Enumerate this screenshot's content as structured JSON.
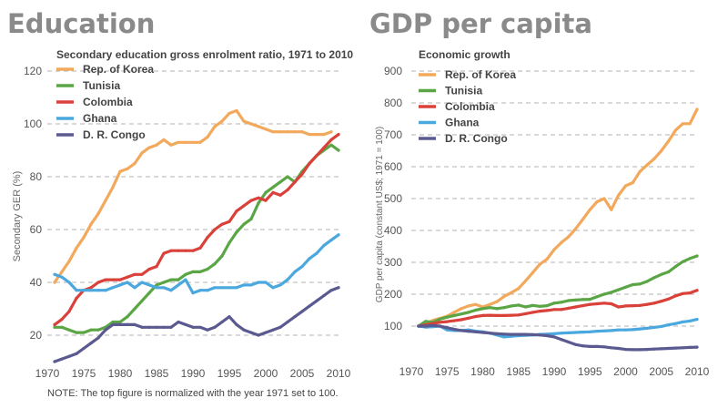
{
  "chart_data": [
    {
      "id": "education",
      "type": "line",
      "heading": "Education",
      "title": "Secondary education gross enrolment ratio, 1971 to 2010",
      "xlabel": "",
      "ylabel": "Secondary GER (%)",
      "xlim": [
        1970,
        2010
      ],
      "ylim": [
        10,
        120
      ],
      "xticks": [
        1970,
        1975,
        1980,
        1985,
        1990,
        1995,
        2000,
        2005,
        2010
      ],
      "yticks": [
        20,
        40,
        60,
        80,
        100,
        120
      ],
      "grid": "horizontal-dashed",
      "legend_position": "top-left",
      "note": "NOTE: The top figure is normalized with the year 1971 set to 100.",
      "series": [
        {
          "name": "Rep. of Korea",
          "color": "#f2a95c",
          "x": [
            1971,
            1972,
            1973,
            1974,
            1975,
            1976,
            1977,
            1978,
            1979,
            1980,
            1981,
            1982,
            1983,
            1984,
            1985,
            1986,
            1987,
            1988,
            1989,
            1990,
            1991,
            1992,
            1993,
            1994,
            1995,
            1996,
            1997,
            1998,
            1999,
            2000,
            2001,
            2002,
            2003,
            2004,
            2005,
            2006,
            2007,
            2008,
            2009
          ],
          "y": [
            40,
            44,
            48,
            53,
            57,
            62,
            66,
            71,
            76,
            82,
            83,
            85,
            89,
            91,
            92,
            94,
            92,
            93,
            93,
            93,
            93,
            95,
            99,
            101,
            104,
            105,
            101,
            100,
            99,
            98,
            97,
            97,
            97,
            97,
            97,
            96,
            96,
            96,
            97
          ]
        },
        {
          "name": "Tunisia",
          "color": "#5aa544",
          "x": [
            1971,
            1972,
            1973,
            1974,
            1975,
            1976,
            1977,
            1978,
            1979,
            1980,
            1981,
            1982,
            1983,
            1984,
            1985,
            1986,
            1987,
            1988,
            1989,
            1990,
            1991,
            1992,
            1993,
            1994,
            1995,
            1996,
            1997,
            1998,
            1999,
            2000,
            2001,
            2002,
            2003,
            2004,
            2005,
            2006,
            2007,
            2008,
            2009,
            2010
          ],
          "y": [
            23,
            23,
            22,
            21,
            21,
            22,
            22,
            23,
            25,
            25,
            27,
            30,
            33,
            36,
            39,
            40,
            41,
            41,
            43,
            44,
            44,
            45,
            47,
            50,
            55,
            59,
            62,
            64,
            70,
            74,
            76,
            78,
            80,
            78,
            82,
            85,
            88,
            90,
            92,
            90
          ]
        },
        {
          "name": "Colombia",
          "color": "#d9413a",
          "x": [
            1971,
            1972,
            1973,
            1974,
            1975,
            1976,
            1977,
            1978,
            1979,
            1980,
            1981,
            1982,
            1983,
            1984,
            1985,
            1986,
            1987,
            1988,
            1989,
            1990,
            1991,
            1992,
            1993,
            1994,
            1995,
            1996,
            1997,
            1998,
            1999,
            2000,
            2001,
            2002,
            2003,
            2004,
            2005,
            2006,
            2007,
            2008,
            2009,
            2010
          ],
          "y": [
            24,
            26,
            29,
            34,
            37,
            38,
            40,
            41,
            41,
            41,
            42,
            43,
            43,
            45,
            46,
            51,
            52,
            52,
            52,
            52,
            53,
            57,
            60,
            62,
            63,
            67,
            69,
            71,
            72,
            71,
            74,
            73,
            75,
            78,
            81,
            85,
            88,
            91,
            94,
            96
          ]
        },
        {
          "name": "Ghana",
          "color": "#4ba8de",
          "x": [
            1971,
            1972,
            1973,
            1974,
            1975,
            1976,
            1977,
            1978,
            1979,
            1980,
            1981,
            1982,
            1983,
            1984,
            1985,
            1986,
            1987,
            1988,
            1989,
            1990,
            1991,
            1992,
            1993,
            1994,
            1995,
            1996,
            1997,
            1998,
            1999,
            2000,
            2001,
            2002,
            2003,
            2004,
            2005,
            2006,
            2007,
            2008,
            2009,
            2010
          ],
          "y": [
            43,
            42,
            40,
            37,
            37,
            37,
            37,
            37,
            38,
            39,
            40,
            38,
            40,
            39,
            38,
            38,
            37,
            39,
            41,
            36,
            37,
            37,
            38,
            38,
            38,
            38,
            39,
            39,
            40,
            40,
            38,
            39,
            41,
            44,
            46,
            49,
            51,
            54,
            56,
            58
          ]
        },
        {
          "name": "D. R. Congo",
          "color": "#5b5a90",
          "x": [
            1971,
            1972,
            1973,
            1974,
            1975,
            1976,
            1977,
            1978,
            1979,
            1980,
            1981,
            1982,
            1983,
            1984,
            1985,
            1986,
            1987,
            1988,
            1989,
            1990,
            1991,
            1992,
            1993,
            1994,
            1995,
            1996,
            1997,
            1998,
            1999,
            2000,
            2001,
            2002,
            2003,
            2004,
            2005,
            2006,
            2007,
            2008,
            2009,
            2010
          ],
          "y": [
            10,
            11,
            12,
            13,
            15,
            17,
            19,
            22,
            24,
            24,
            24,
            24,
            23,
            23,
            23,
            23,
            23,
            25,
            24,
            23,
            23,
            22,
            23,
            25,
            27,
            24,
            22,
            21,
            20,
            21,
            22,
            23,
            25,
            27,
            29,
            31,
            33,
            35,
            37,
            38
          ]
        }
      ]
    },
    {
      "id": "gdp",
      "type": "line",
      "heading": "GDP per capita",
      "title": "Economic growth",
      "xlabel": "",
      "ylabel": "GDP per capita (constant US$; 1971 = 100)",
      "xlim": [
        1970,
        2010
      ],
      "ylim": [
        0,
        900
      ],
      "xticks": [
        1970,
        1975,
        1980,
        1985,
        1990,
        1995,
        2000,
        2005,
        2010
      ],
      "xtick_labels": [
        "1970",
        "1975",
        "1980",
        "1985",
        "1990",
        "1995",
        "2000",
        "2005",
        "2010"
      ],
      "yticks": [
        100,
        200,
        300,
        400,
        500,
        600,
        700,
        800,
        900
      ],
      "grid": "horizontal-dashed",
      "legend_position": "top-left",
      "series": [
        {
          "name": "Rep. of Korea",
          "color": "#f2a95c",
          "x": [
            1971,
            1972,
            1973,
            1974,
            1975,
            1976,
            1977,
            1978,
            1979,
            1980,
            1981,
            1982,
            1983,
            1984,
            1985,
            1986,
            1987,
            1988,
            1989,
            1990,
            1991,
            1992,
            1993,
            1994,
            1995,
            1996,
            1997,
            1998,
            1999,
            2000,
            2001,
            2002,
            2003,
            2004,
            2005,
            2006,
            2007,
            2008,
            2009,
            2010
          ],
          "y": [
            100,
            107,
            118,
            124,
            131,
            143,
            155,
            163,
            168,
            160,
            168,
            177,
            193,
            205,
            218,
            242,
            268,
            294,
            310,
            340,
            362,
            380,
            405,
            435,
            465,
            490,
            500,
            465,
            510,
            540,
            550,
            585,
            605,
            625,
            650,
            680,
            715,
            735,
            735,
            780
          ]
        },
        {
          "name": "Tunisia",
          "color": "#5aa544",
          "x": [
            1971,
            1972,
            1973,
            1974,
            1975,
            1976,
            1977,
            1978,
            1979,
            1980,
            1981,
            1982,
            1983,
            1984,
            1985,
            1986,
            1987,
            1988,
            1989,
            1990,
            1991,
            1992,
            1993,
            1994,
            1995,
            1996,
            1997,
            1998,
            1999,
            2000,
            2001,
            2002,
            2003,
            2004,
            2005,
            2006,
            2007,
            2008,
            2009,
            2010
          ],
          "y": [
            100,
            115,
            112,
            122,
            128,
            133,
            138,
            143,
            150,
            155,
            158,
            155,
            158,
            163,
            166,
            160,
            165,
            162,
            164,
            172,
            175,
            180,
            182,
            183,
            184,
            192,
            200,
            206,
            214,
            222,
            230,
            232,
            240,
            252,
            262,
            270,
            287,
            302,
            312,
            320
          ]
        },
        {
          "name": "Colombia",
          "color": "#d9413a",
          "x": [
            1971,
            1972,
            1973,
            1974,
            1975,
            1976,
            1977,
            1978,
            1979,
            1980,
            1981,
            1982,
            1983,
            1984,
            1985,
            1986,
            1987,
            1988,
            1989,
            1990,
            1991,
            1992,
            1993,
            1994,
            1995,
            1996,
            1997,
            1998,
            1999,
            2000,
            2001,
            2002,
            2003,
            2004,
            2005,
            2006,
            2007,
            2008,
            2009,
            2010
          ],
          "y": [
            100,
            104,
            108,
            112,
            114,
            117,
            120,
            125,
            130,
            133,
            134,
            133,
            133,
            134,
            135,
            139,
            143,
            147,
            149,
            152,
            152,
            156,
            160,
            164,
            168,
            170,
            172,
            170,
            160,
            163,
            164,
            165,
            168,
            172,
            178,
            185,
            195,
            202,
            204,
            212
          ]
        },
        {
          "name": "Ghana",
          "color": "#4ba8de",
          "x": [
            1971,
            1972,
            1973,
            1974,
            1975,
            1976,
            1977,
            1978,
            1979,
            1980,
            1981,
            1982,
            1983,
            1984,
            1985,
            1986,
            1987,
            1988,
            1989,
            1990,
            1991,
            1992,
            1993,
            1994,
            1995,
            1996,
            1997,
            1998,
            1999,
            2000,
            2001,
            2002,
            2003,
            2004,
            2005,
            2006,
            2007,
            2008,
            2009,
            2010
          ],
          "y": [
            100,
            97,
            98,
            100,
            88,
            86,
            86,
            88,
            84,
            82,
            78,
            72,
            66,
            68,
            70,
            71,
            72,
            74,
            75,
            76,
            78,
            79,
            80,
            81,
            82,
            84,
            85,
            86,
            88,
            88,
            89,
            91,
            93,
            96,
            99,
            104,
            108,
            113,
            116,
            121
          ]
        },
        {
          "name": "D. R. Congo",
          "color": "#5b5a90",
          "x": [
            1971,
            1972,
            1973,
            1974,
            1975,
            1976,
            1977,
            1978,
            1979,
            1980,
            1981,
            1982,
            1983,
            1984,
            1985,
            1986,
            1987,
            1988,
            1989,
            1990,
            1991,
            1992,
            1993,
            1994,
            1995,
            1996,
            1997,
            1998,
            1999,
            2000,
            2001,
            2002,
            2003,
            2004,
            2005,
            2006,
            2007,
            2008,
            2009,
            2010
          ],
          "y": [
            100,
            100,
            102,
            100,
            95,
            90,
            86,
            84,
            82,
            80,
            78,
            76,
            75,
            74,
            74,
            74,
            73,
            72,
            70,
            66,
            58,
            50,
            42,
            38,
            36,
            36,
            35,
            32,
            30,
            27,
            26,
            26,
            27,
            28,
            29,
            30,
            31,
            32,
            33,
            34
          ]
        }
      ]
    }
  ]
}
